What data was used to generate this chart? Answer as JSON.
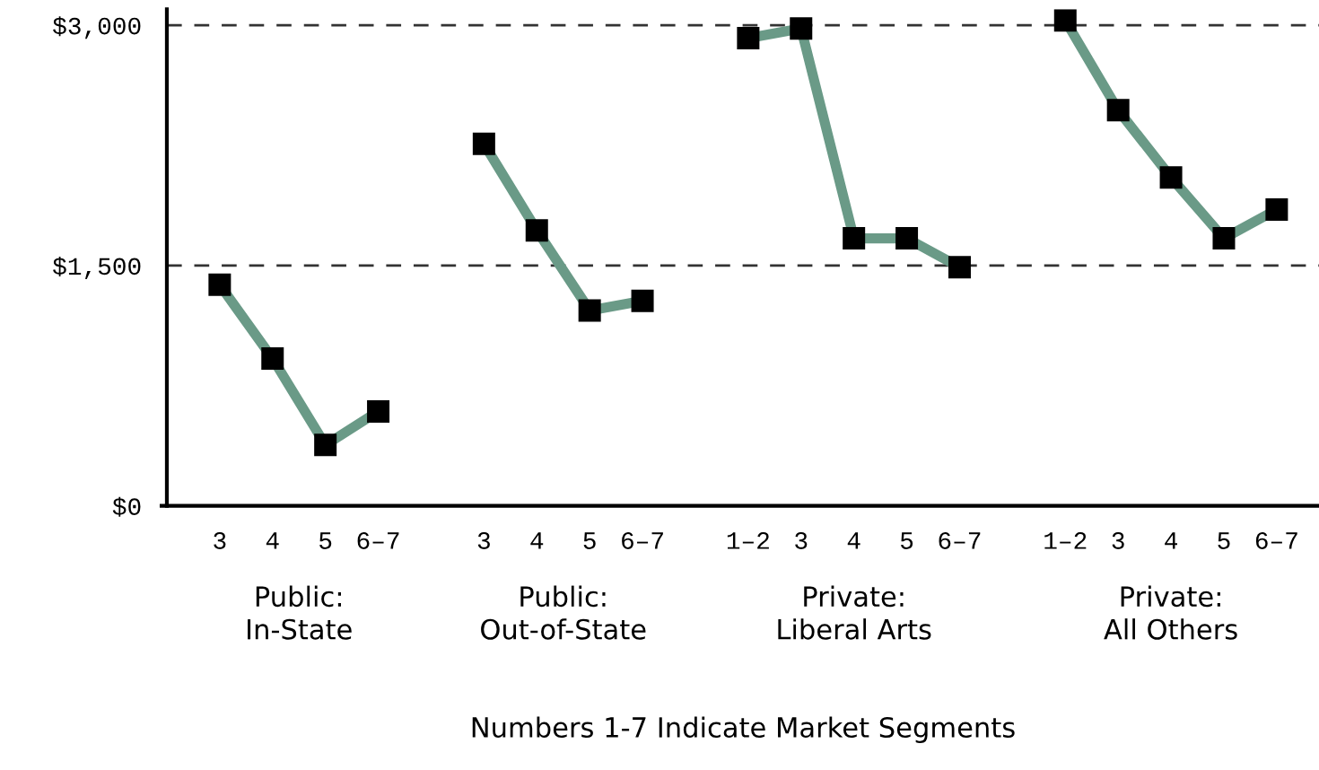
{
  "chart_data": {
    "type": "line",
    "categories": [
      "3",
      "4",
      "5",
      "6–7",
      null,
      "3",
      "4",
      "5",
      "6–7",
      null,
      "1–2",
      "3",
      "4",
      "5",
      "6–7",
      null,
      "1–2",
      "3",
      "4",
      "5",
      "6–7"
    ],
    "series": [
      {
        "color": "#6a9a87",
        "values": [
          1380,
          920,
          380,
          590,
          null,
          2260,
          1720,
          1220,
          1280,
          null,
          2920,
          2980,
          1670,
          1670,
          1490,
          null,
          3030,
          2470,
          2050,
          1670,
          1850
        ]
      }
    ],
    "ylim": [
      0,
      3100
    ],
    "yticks": [
      {
        "value": 0,
        "label": "$0"
      },
      {
        "value": 1500,
        "label": "$1,500"
      },
      {
        "value": 3000,
        "label": "$3,000"
      }
    ],
    "grid": "y",
    "marker": "square",
    "line_style": "solid",
    "legend": false,
    "annotations": [
      "Public:\nIn-State",
      "Public:\nOut-of-State",
      "Private:\nLiberal Arts",
      "Private:\nAll Others",
      "Numbers 1-7 Indicate Market Segments"
    ]
  }
}
